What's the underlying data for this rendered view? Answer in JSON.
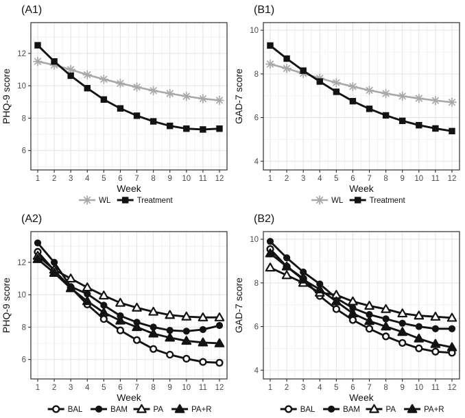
{
  "figure": {
    "background": "#ffffff",
    "panel_border_color": "#2b2b2b",
    "grid_major_color": "#e2e2e2",
    "grid_minor_color": "#f1f1f1",
    "tick_label_color": "#4a4a4a",
    "text_color": "#111111",
    "wl_gray": "#a8a8a8",
    "series_black": "#121212"
  },
  "chart_data": [
    {
      "type": "line",
      "title": "(A1)",
      "xlabel": "Week",
      "ylabel": "PHQ-9 score",
      "x": [
        1,
        2,
        3,
        4,
        5,
        6,
        7,
        8,
        9,
        10,
        11,
        12
      ],
      "xticks": [
        1,
        2,
        3,
        4,
        5,
        6,
        7,
        8,
        9,
        10,
        11,
        12
      ],
      "yticks": [
        6,
        8,
        10,
        12
      ],
      "ylim": [
        4.8,
        13.9
      ],
      "grid": true,
      "legend_position": "bottom",
      "series": [
        {
          "name": "WL",
          "marker": "asterisk",
          "color": "#a8a8a8",
          "values": [
            11.5,
            11.28,
            11.0,
            10.68,
            10.4,
            10.15,
            9.92,
            9.7,
            9.52,
            9.35,
            9.2,
            9.1
          ]
        },
        {
          "name": "Treatment",
          "marker": "square_filled",
          "color": "#121212",
          "values": [
            12.5,
            11.5,
            10.62,
            9.85,
            9.15,
            8.6,
            8.15,
            7.8,
            7.52,
            7.35,
            7.3,
            7.35
          ]
        }
      ]
    },
    {
      "type": "line",
      "title": "(B1)",
      "xlabel": "Week",
      "ylabel": "GAD-7 score",
      "x": [
        1,
        2,
        3,
        4,
        5,
        6,
        7,
        8,
        9,
        10,
        11,
        12
      ],
      "xticks": [
        1,
        2,
        3,
        4,
        5,
        6,
        7,
        8,
        9,
        10,
        11,
        12
      ],
      "yticks": [
        4,
        6,
        8,
        10
      ],
      "ylim": [
        3.6,
        10.35
      ],
      "grid": true,
      "legend_position": "bottom",
      "series": [
        {
          "name": "WL",
          "marker": "asterisk",
          "color": "#a8a8a8",
          "values": [
            8.45,
            8.25,
            8.02,
            7.8,
            7.6,
            7.42,
            7.25,
            7.1,
            6.98,
            6.88,
            6.78,
            6.7
          ]
        },
        {
          "name": "Treatment",
          "marker": "square_filled",
          "color": "#121212",
          "values": [
            9.3,
            8.7,
            8.15,
            7.65,
            7.18,
            6.75,
            6.4,
            6.1,
            5.85,
            5.65,
            5.5,
            5.38
          ]
        }
      ]
    },
    {
      "type": "line",
      "title": "(A2)",
      "xlabel": "Week",
      "ylabel": "PHQ-9 score",
      "x": [
        1,
        2,
        3,
        4,
        5,
        6,
        7,
        8,
        9,
        10,
        11,
        12
      ],
      "xticks": [
        1,
        2,
        3,
        4,
        5,
        6,
        7,
        8,
        9,
        10,
        11,
        12
      ],
      "yticks": [
        6,
        8,
        10,
        12
      ],
      "ylim": [
        4.8,
        13.9
      ],
      "grid": true,
      "legend_position": "bottom",
      "series": [
        {
          "name": "BAL",
          "marker": "circle_open",
          "color": "#121212",
          "values": [
            12.65,
            11.5,
            10.45,
            9.4,
            8.5,
            7.8,
            7.2,
            6.65,
            6.3,
            6.05,
            5.85,
            5.8
          ]
        },
        {
          "name": "BAM",
          "marker": "circle_filled",
          "color": "#121212",
          "values": [
            13.2,
            12.0,
            10.5,
            10.05,
            9.35,
            8.7,
            8.3,
            8.0,
            7.8,
            7.75,
            7.85,
            8.1
          ]
        },
        {
          "name": "PA",
          "marker": "triangle_open",
          "color": "#121212",
          "values": [
            12.4,
            11.55,
            11.0,
            10.45,
            9.95,
            9.5,
            9.2,
            8.95,
            8.75,
            8.65,
            8.6,
            8.6
          ]
        },
        {
          "name": "PA+R",
          "marker": "triangle_filled",
          "color": "#121212",
          "values": [
            12.2,
            11.35,
            10.4,
            9.6,
            8.9,
            8.4,
            8.0,
            7.6,
            7.35,
            7.15,
            7.05,
            7.0
          ]
        }
      ]
    },
    {
      "type": "line",
      "title": "(B2)",
      "xlabel": "Week",
      "ylabel": "GAD-7 score",
      "x": [
        1,
        2,
        3,
        4,
        5,
        6,
        7,
        8,
        9,
        10,
        11,
        12
      ],
      "xticks": [
        1,
        2,
        3,
        4,
        5,
        6,
        7,
        8,
        9,
        10,
        11,
        12
      ],
      "yticks": [
        4,
        6,
        8,
        10
      ],
      "ylim": [
        3.6,
        10.35
      ],
      "grid": true,
      "legend_position": "bottom",
      "series": [
        {
          "name": "BAL",
          "marker": "circle_open",
          "color": "#121212",
          "values": [
            9.55,
            8.75,
            8.2,
            7.4,
            6.8,
            6.3,
            5.9,
            5.55,
            5.25,
            5.0,
            4.85,
            4.8
          ]
        },
        {
          "name": "BAM",
          "marker": "circle_filled",
          "color": "#121212",
          "values": [
            9.9,
            9.15,
            8.5,
            7.95,
            7.3,
            6.85,
            6.55,
            6.35,
            6.15,
            6.0,
            5.9,
            5.9
          ]
        },
        {
          "name": "PA",
          "marker": "triangle_open",
          "color": "#121212",
          "values": [
            8.7,
            8.35,
            8.0,
            7.55,
            7.45,
            7.15,
            6.95,
            6.8,
            6.6,
            6.5,
            6.45,
            6.4
          ]
        },
        {
          "name": "PA+R",
          "marker": "triangle_filled",
          "color": "#121212",
          "values": [
            9.35,
            8.75,
            8.15,
            7.7,
            7.15,
            6.6,
            6.25,
            6.0,
            5.75,
            5.45,
            5.2,
            5.05
          ]
        }
      ]
    }
  ]
}
